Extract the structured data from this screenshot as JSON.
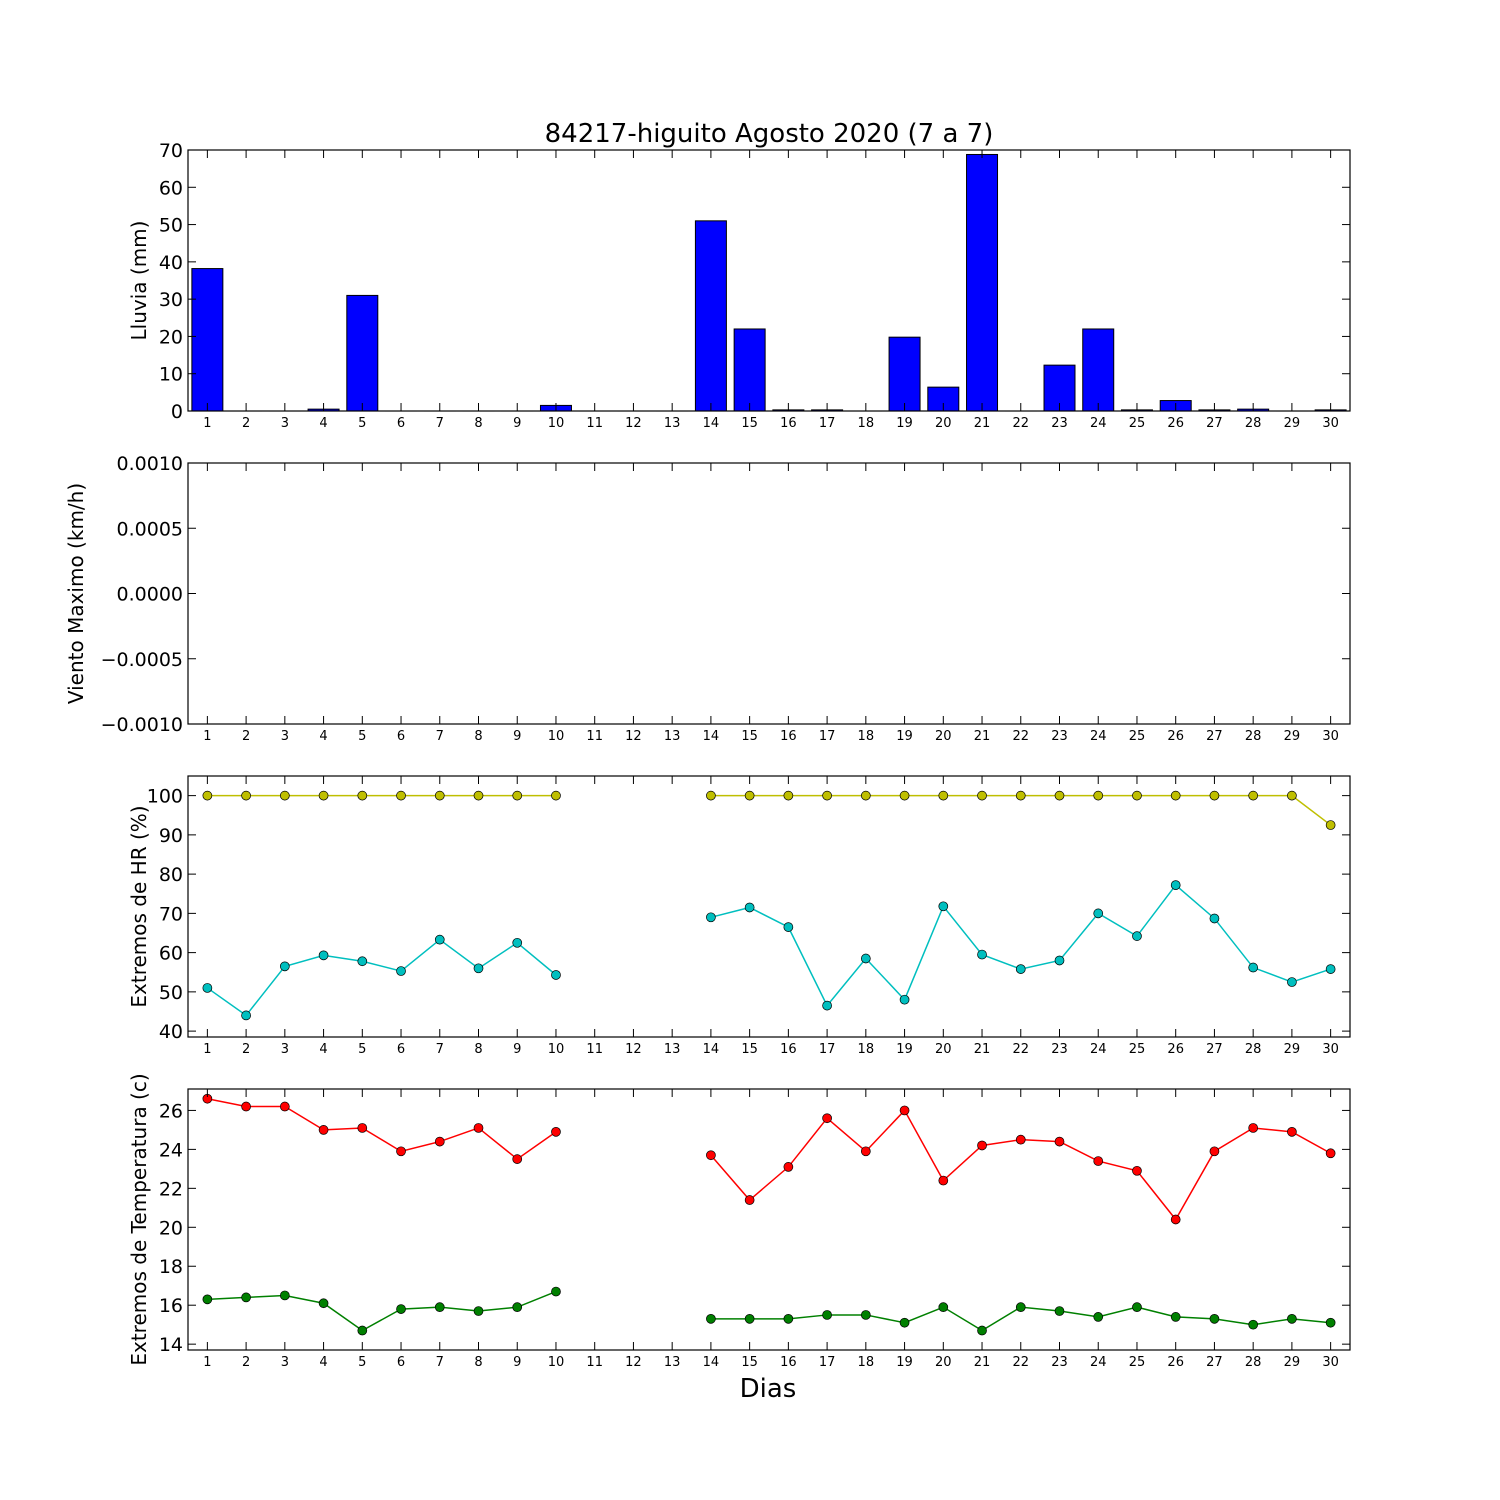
{
  "figure": {
    "title": "84217-higuito Agosto 2020  (7 a 7)",
    "xlabel": "Dias"
  },
  "colors": {
    "bar_fill": "#0000ff",
    "hr_max": "#bfbf00",
    "hr_min": "#00bfbf",
    "temp_max": "#ff0000",
    "temp_min": "#008000"
  },
  "chart_data": [
    {
      "id": "lluvia",
      "type": "bar",
      "ylabel": "Lluvia (mm)",
      "ylim": [
        0,
        70
      ],
      "yticks": [
        0,
        10,
        20,
        30,
        40,
        50,
        60,
        70
      ],
      "ytick_labels": [
        "0",
        "10",
        "20",
        "30",
        "40",
        "50",
        "60",
        "70"
      ],
      "xlim": [
        0.5,
        30.5
      ],
      "categories": [
        1,
        2,
        3,
        4,
        5,
        6,
        7,
        8,
        9,
        10,
        11,
        12,
        13,
        14,
        15,
        16,
        17,
        18,
        19,
        20,
        21,
        22,
        23,
        24,
        25,
        26,
        27,
        28,
        29,
        30
      ],
      "series": [
        {
          "color_key": "bar_fill",
          "values": [
            38.2,
            0,
            0,
            0.5,
            31,
            0,
            0,
            0,
            0,
            1.5,
            0,
            0,
            0,
            51,
            22,
            0.3,
            0.3,
            0,
            19.8,
            6.4,
            68.8,
            0,
            12.3,
            22,
            0.3,
            2.8,
            0.3,
            0.5,
            0,
            0.3
          ]
        }
      ]
    },
    {
      "id": "viento",
      "type": "line",
      "ylabel": "Viento Maximo (km/h)",
      "ylim": [
        -0.001,
        0.001
      ],
      "yticks": [
        -0.001,
        -0.0005,
        0,
        0.0005,
        0.001
      ],
      "ytick_labels": [
        "−0.0010",
        "−0.0005",
        "0.0000",
        "0.0005",
        "0.0010"
      ],
      "xlim": [
        0.5,
        30.5
      ],
      "categories": [
        1,
        2,
        3,
        4,
        5,
        6,
        7,
        8,
        9,
        10,
        11,
        12,
        13,
        14,
        15,
        16,
        17,
        18,
        19,
        20,
        21,
        22,
        23,
        24,
        25,
        26,
        27,
        28,
        29,
        30
      ],
      "series": []
    },
    {
      "id": "humedad",
      "type": "line",
      "ylabel": "Extremos de HR (%)",
      "ylim": [
        38.5,
        105
      ],
      "yticks": [
        40,
        50,
        60,
        70,
        80,
        90,
        100
      ],
      "ytick_labels": [
        "40",
        "50",
        "60",
        "70",
        "80",
        "90",
        "100"
      ],
      "xlim": [
        0.5,
        30.5
      ],
      "categories": [
        1,
        2,
        3,
        4,
        5,
        6,
        7,
        8,
        9,
        10,
        11,
        12,
        13,
        14,
        15,
        16,
        17,
        18,
        19,
        20,
        21,
        22,
        23,
        24,
        25,
        26,
        27,
        28,
        29,
        30
      ],
      "series": [
        {
          "color_key": "hr_max",
          "values": [
            100,
            100,
            100,
            100,
            100,
            100,
            100,
            100,
            100,
            100,
            null,
            null,
            null,
            100,
            100,
            100,
            100,
            100,
            100,
            100,
            100,
            100,
            100,
            100,
            100,
            100,
            100,
            100,
            100,
            92.5
          ]
        },
        {
          "color_key": "hr_min",
          "values": [
            51,
            44,
            56.5,
            59.3,
            57.8,
            55.3,
            63.3,
            56,
            62.5,
            54.3,
            null,
            null,
            null,
            69,
            71.5,
            66.5,
            46.5,
            58.5,
            48,
            71.8,
            59.5,
            55.8,
            58,
            70,
            64.2,
            77.2,
            68.7,
            56.2,
            52.5,
            55.8
          ]
        }
      ]
    },
    {
      "id": "temperatura",
      "type": "line",
      "ylabel": "Extremos de Temperatura (c)",
      "ylim": [
        13.7,
        27.1
      ],
      "yticks": [
        14,
        16,
        18,
        20,
        22,
        24,
        26
      ],
      "ytick_labels": [
        "14",
        "16",
        "18",
        "20",
        "22",
        "24",
        "26"
      ],
      "xlim": [
        0.5,
        30.5
      ],
      "categories": [
        1,
        2,
        3,
        4,
        5,
        6,
        7,
        8,
        9,
        10,
        11,
        12,
        13,
        14,
        15,
        16,
        17,
        18,
        19,
        20,
        21,
        22,
        23,
        24,
        25,
        26,
        27,
        28,
        29,
        30
      ],
      "series": [
        {
          "color_key": "temp_max",
          "values": [
            26.6,
            26.2,
            26.2,
            25,
            25.1,
            23.9,
            24.4,
            25.1,
            23.5,
            24.9,
            null,
            null,
            null,
            23.7,
            21.4,
            23.1,
            25.6,
            23.9,
            26,
            22.4,
            24.2,
            24.5,
            24.4,
            23.4,
            22.9,
            20.4,
            23.9,
            25.1,
            24.9,
            23.8
          ]
        },
        {
          "color_key": "temp_min",
          "values": [
            16.3,
            16.4,
            16.5,
            16.1,
            14.7,
            15.8,
            15.9,
            15.7,
            15.9,
            16.7,
            null,
            null,
            null,
            15.3,
            15.3,
            15.3,
            15.5,
            15.5,
            15.1,
            15.9,
            14.7,
            15.9,
            15.7,
            15.4,
            15.9,
            15.4,
            15.3,
            15,
            15.3,
            15.1
          ]
        }
      ]
    }
  ]
}
